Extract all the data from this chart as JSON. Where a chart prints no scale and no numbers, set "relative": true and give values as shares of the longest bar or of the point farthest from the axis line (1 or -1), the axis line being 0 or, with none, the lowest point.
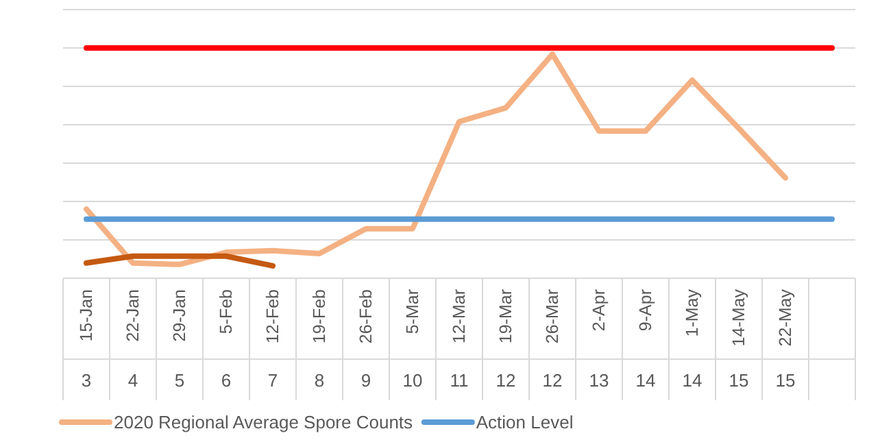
{
  "chart_data": {
    "type": "line",
    "relative": true,
    "grid": "y",
    "legend": "bottom",
    "categories": [
      "15-Jan",
      "22-Jan",
      "29-Jan",
      "5-Feb",
      "12-Feb",
      "19-Feb",
      "26-Feb",
      "5-Mar",
      "12-Mar",
      "19-Mar",
      "26-Mar",
      "2-Apr",
      "9-Apr",
      "1-May",
      "14-May",
      "22-May",
      null
    ],
    "series": [
      {
        "name": "2020 Regional Average Spore Counts",
        "color": "#f4b183",
        "values": [
          0.3,
          0.066,
          0.06,
          0.113,
          0.12,
          0.107,
          0.215,
          0.215,
          0.68,
          0.74,
          0.973,
          0.639,
          0.639,
          0.86,
          0.651,
          0.436,
          null
        ]
      },
      {
        "color": "#c55a11",
        "values": [
          0.066,
          0.096,
          0.096,
          0.096,
          0.054,
          null,
          null,
          null,
          null,
          null,
          null,
          null,
          null,
          null,
          null,
          null,
          null
        ]
      },
      {
        "color": "#ff0000",
        "values": [
          1,
          1,
          1,
          1,
          1,
          1,
          1,
          1,
          1,
          1,
          1,
          1,
          1,
          1,
          1,
          1,
          1
        ]
      },
      {
        "name": "Action Level",
        "color": "#5b9bd5",
        "values": [
          0.257,
          0.257,
          0.257,
          0.257,
          0.257,
          0.257,
          0.257,
          0.257,
          0.257,
          0.257,
          0.257,
          0.257,
          0.257,
          0.257,
          0.257,
          0.257,
          0.257
        ]
      }
    ],
    "annotations": [
      "3",
      "4",
      "5",
      "6",
      "7",
      "8",
      "9",
      "10",
      "11",
      "12",
      "12",
      "13",
      "14",
      "14",
      "15",
      "15"
    ]
  }
}
